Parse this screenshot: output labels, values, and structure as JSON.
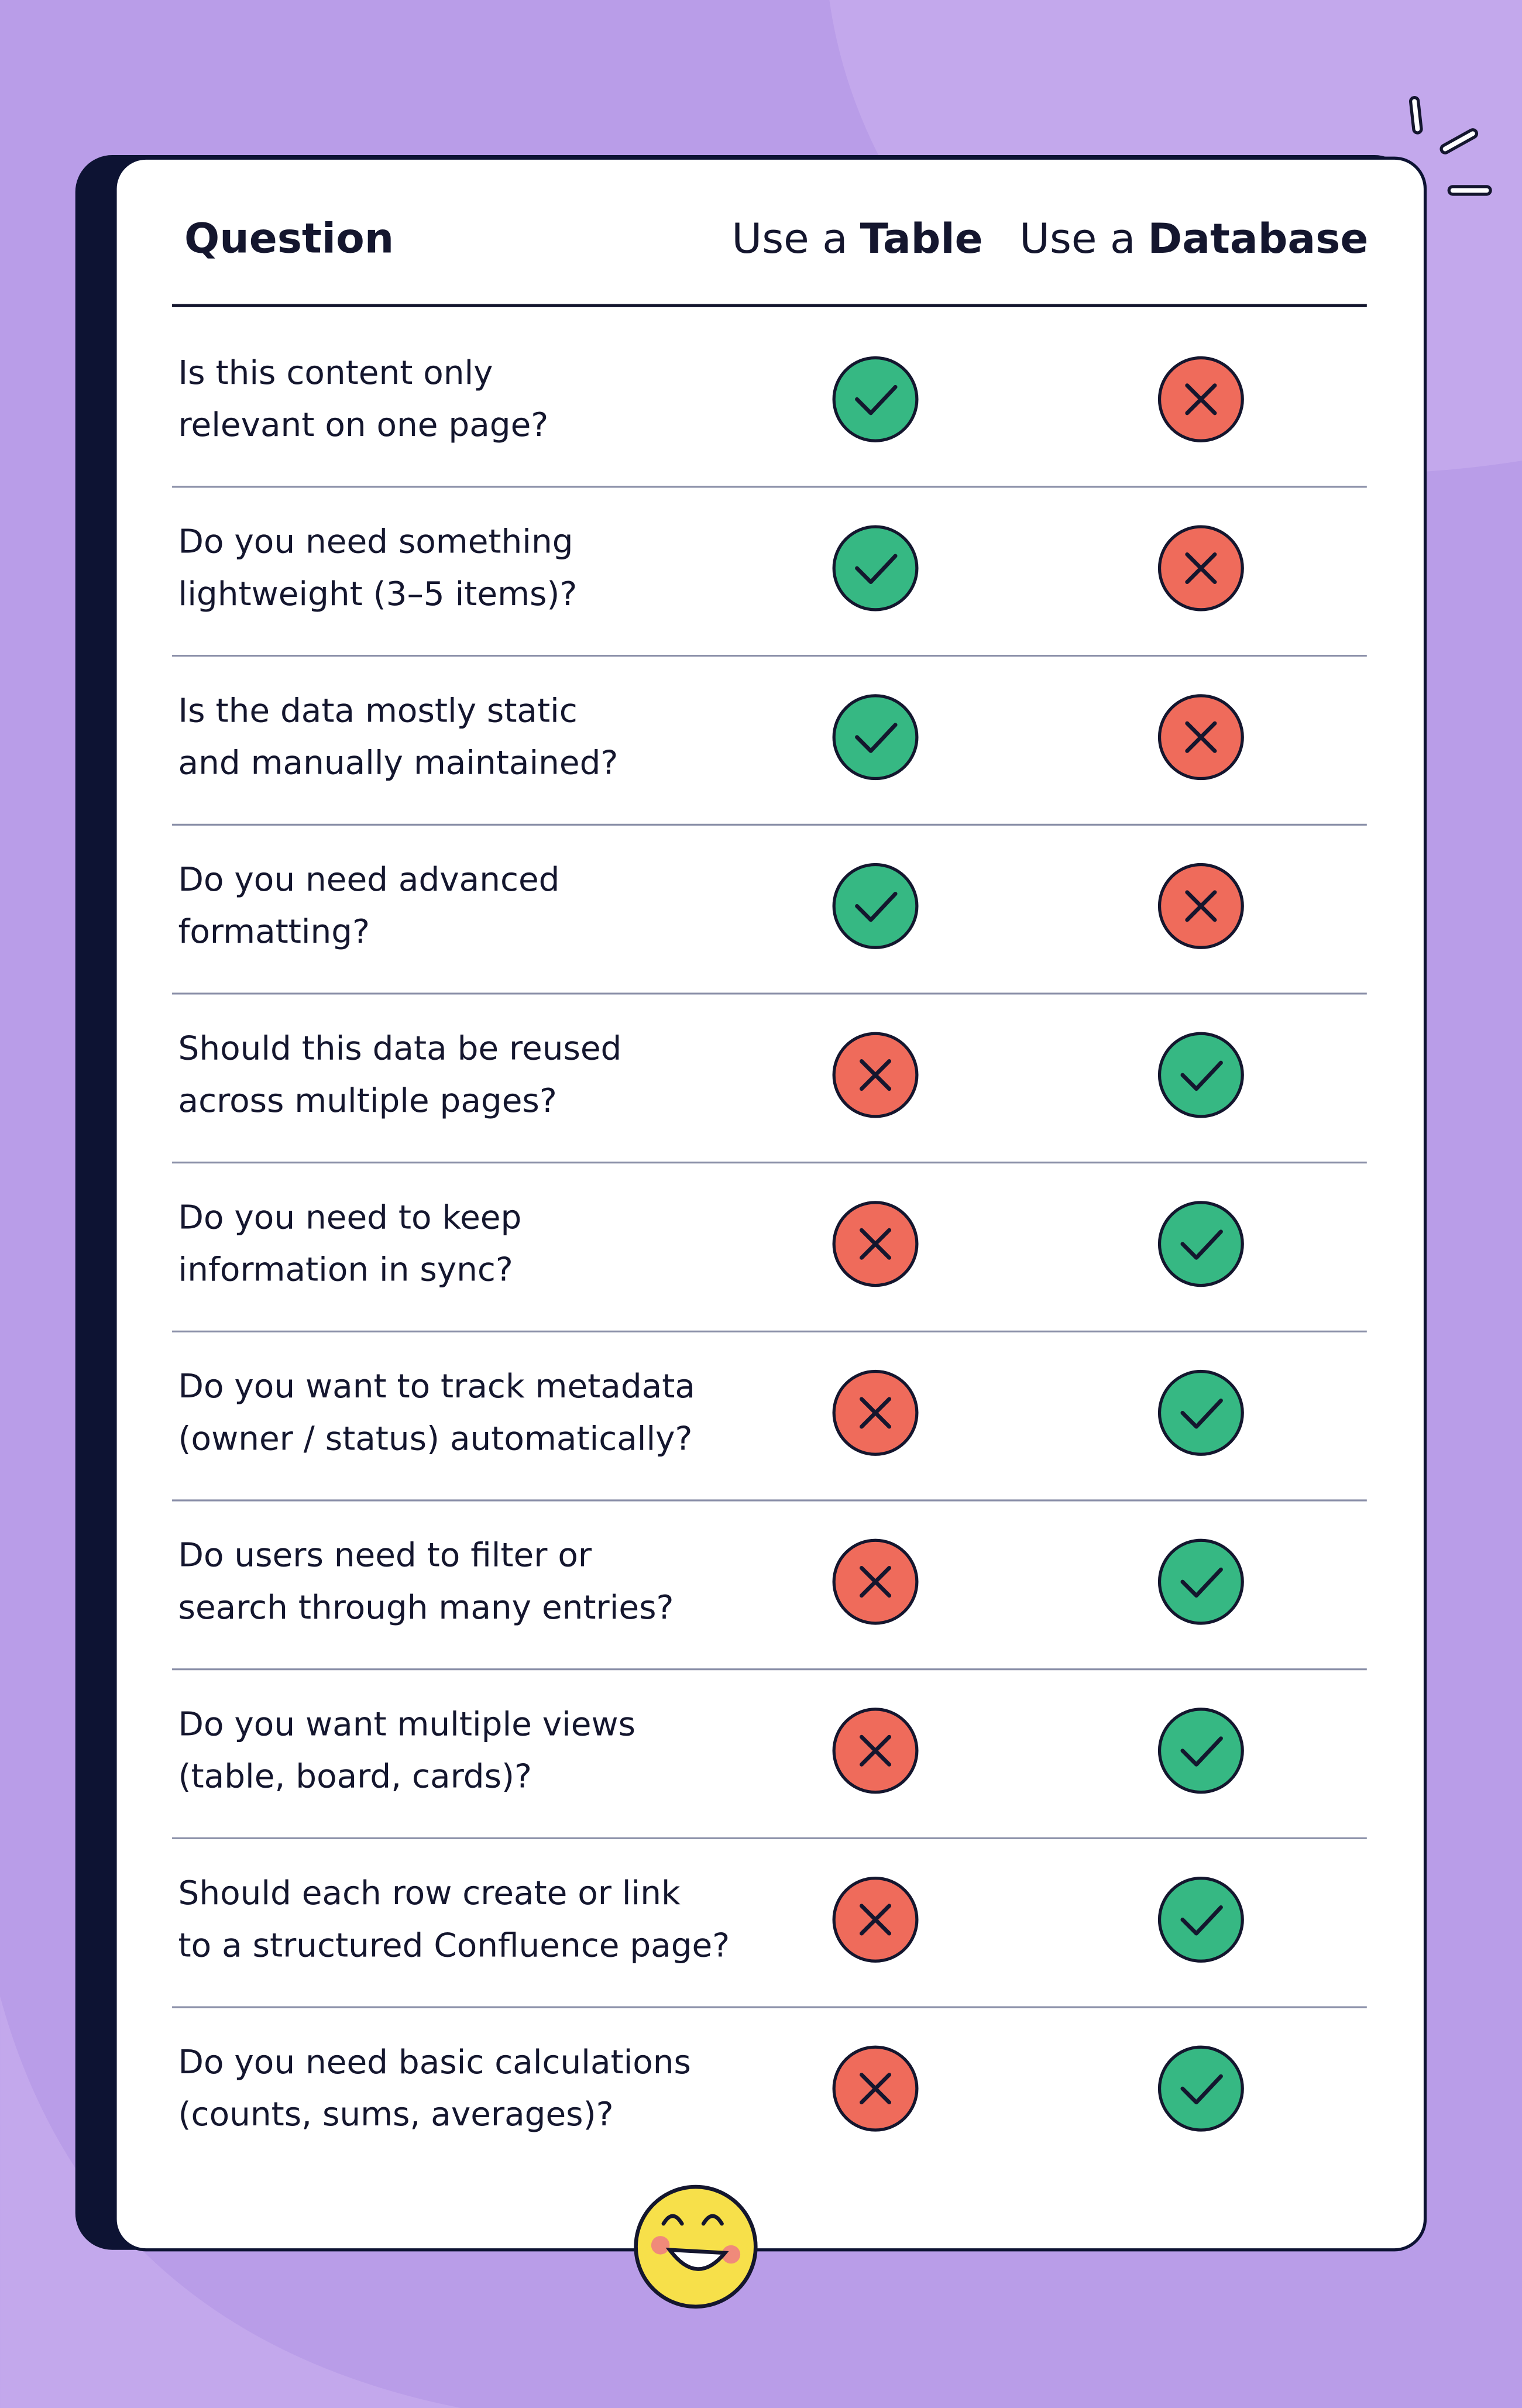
{
  "header": {
    "question": "Question",
    "columns": [
      {
        "prefix": "Use a",
        "bold": "Table"
      },
      {
        "prefix": "Use a",
        "bold": "Database"
      }
    ]
  },
  "rows": [
    {
      "lines": [
        "Is this content only",
        "relevant on one page?"
      ],
      "table": true,
      "database": false
    },
    {
      "lines": [
        "Do you need something",
        "lightweight (3–5 items)?"
      ],
      "table": true,
      "database": false
    },
    {
      "lines": [
        "Is the data mostly static",
        "and manually maintained?"
      ],
      "table": true,
      "database": false
    },
    {
      "lines": [
        "Do you need advanced",
        "formatting?"
      ],
      "table": true,
      "database": false
    },
    {
      "lines": [
        "Should this data be reused",
        "across multiple pages?"
      ],
      "table": false,
      "database": true
    },
    {
      "lines": [
        "Do you need to keep",
        "information in sync?"
      ],
      "table": false,
      "database": true
    },
    {
      "lines": [
        "Do you want to track metadata",
        "(owner / status) automatically?"
      ],
      "table": false,
      "database": true
    },
    {
      "lines": [
        "Do users need to filter or",
        "search through many entries?"
      ],
      "table": false,
      "database": true
    },
    {
      "lines": [
        "Do you want multiple views",
        "(table, board, cards)?"
      ],
      "table": false,
      "database": true
    },
    {
      "lines": [
        "Should each row create or link",
        "to a structured Confluence page?"
      ],
      "table": false,
      "database": true
    },
    {
      "lines": [
        "Do you need basic calculations",
        "(counts, sums, averages)?"
      ],
      "table": false,
      "database": true
    }
  ]
}
